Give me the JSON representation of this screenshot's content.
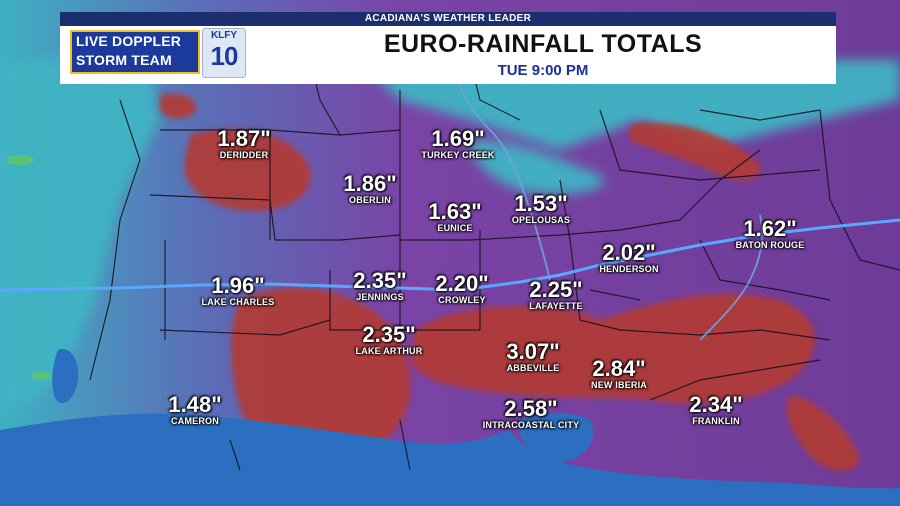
{
  "header": {
    "tagline": "ACADIANA'S WEATHER LEADER",
    "title": "EURO-RAINFALL TOTALS",
    "subtitle": "TUE  9:00 PM",
    "logo_line1": "LIVE DOPPLER",
    "logo_line2": "STORM TEAM",
    "station_call": "KLFY",
    "station_number": "10"
  },
  "locations": [
    {
      "amount": "1.87\"",
      "city": "DERIDDER"
    },
    {
      "amount": "1.69\"",
      "city": "TURKEY CREEK"
    },
    {
      "amount": "1.86\"",
      "city": "OBERLIN"
    },
    {
      "amount": "1.53\"",
      "city": "OPELOUSAS"
    },
    {
      "amount": "1.63\"",
      "city": "EUNICE"
    },
    {
      "amount": "1.62\"",
      "city": "BATON ROUGE"
    },
    {
      "amount": "2.02\"",
      "city": "HENDERSON"
    },
    {
      "amount": "1.96\"",
      "city": "LAKE CHARLES"
    },
    {
      "amount": "2.35\"",
      "city": "JENNINGS"
    },
    {
      "amount": "2.20\"",
      "city": "CROWLEY"
    },
    {
      "amount": "2.25\"",
      "city": "LAFAYETTE"
    },
    {
      "amount": "2.35\"",
      "city": "LAKE ARTHUR"
    },
    {
      "amount": "3.07\"",
      "city": "ABBEVILLE"
    },
    {
      "amount": "2.84\"",
      "city": "NEW IBERIA"
    },
    {
      "amount": "1.48\"",
      "city": "CAMERON"
    },
    {
      "amount": "2.58\"",
      "city": "INTRACOASTAL CITY"
    },
    {
      "amount": "2.34\"",
      "city": "FRANKLIN"
    }
  ],
  "colors": {
    "light_rain": "#3fb4c4",
    "moderate_rain": "#7a44a6",
    "heavy_rain": "#b23a35",
    "gulf": "#2c6fc0",
    "header_bar": "#1b2f6e"
  }
}
